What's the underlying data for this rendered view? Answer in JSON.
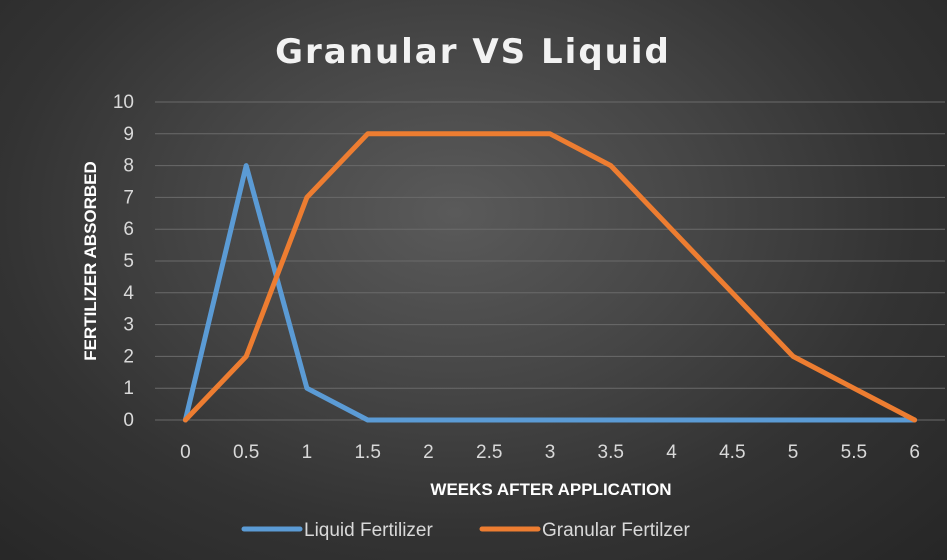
{
  "chart_data": {
    "type": "line",
    "title": "Granular VS Liquid",
    "xlabel": "WEEKS AFTER APPLICATION",
    "ylabel": "FERTILIZER ABSORBED",
    "x": [
      0,
      0.5,
      1,
      1.5,
      2,
      2.5,
      3,
      3.5,
      4,
      4.5,
      5,
      5.5,
      6
    ],
    "x_tick_labels": [
      "0",
      "0.5",
      "1",
      "1.5",
      "2",
      "2.5",
      "3",
      "3.5",
      "4",
      "4.5",
      "5",
      "5.5",
      "6"
    ],
    "y_tick_labels": [
      "0",
      "1",
      "2",
      "3",
      "4",
      "5",
      "6",
      "7",
      "8",
      "9",
      "10"
    ],
    "xlim": [
      0,
      6
    ],
    "ylim": [
      0,
      10
    ],
    "grid": true,
    "legend": "bottom",
    "series": [
      {
        "name": "Liquid Fertilizer",
        "color": "#5b9bd5",
        "values": [
          0,
          8,
          1,
          0,
          0,
          0,
          0,
          0,
          0,
          0,
          0,
          0,
          0
        ]
      },
      {
        "name": "Granular Fertilzer",
        "color": "#ed7d31",
        "values": [
          0,
          2,
          7,
          9,
          9,
          9,
          9,
          8,
          6,
          4,
          2,
          1,
          0
        ]
      }
    ]
  }
}
